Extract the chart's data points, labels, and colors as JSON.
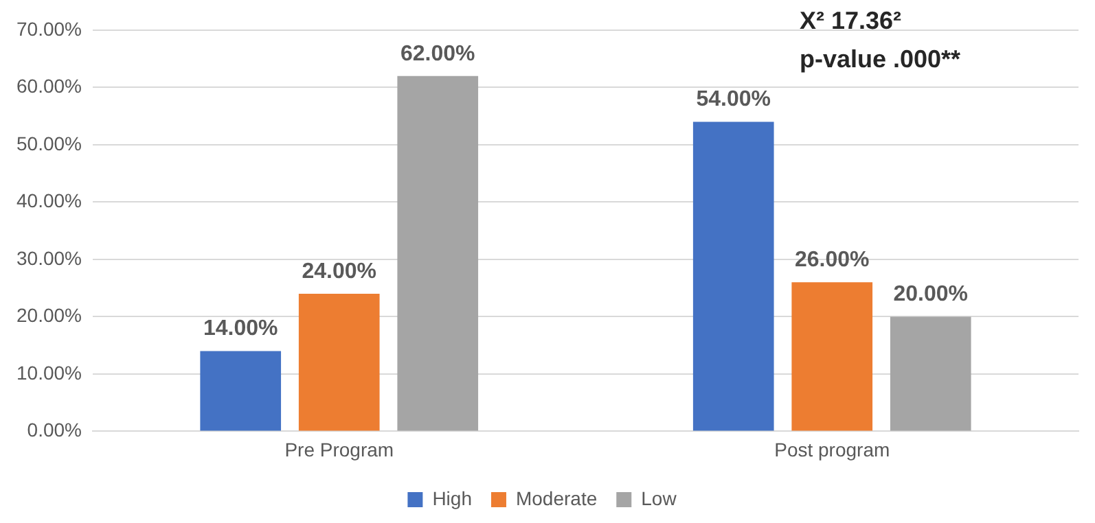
{
  "chart_data": {
    "type": "bar",
    "categories": [
      "Pre Program",
      "Post program"
    ],
    "series": [
      {
        "name": "High",
        "color": "#4472c4",
        "values": [
          14,
          54
        ],
        "value_labels": [
          "14.00%",
          "54.00%"
        ]
      },
      {
        "name": "Moderate",
        "color": "#ed7d31",
        "values": [
          24,
          26
        ],
        "value_labels": [
          "24.00%",
          "26.00%"
        ]
      },
      {
        "name": "Low",
        "color": "#a5a5a5",
        "values": [
          62,
          20
        ],
        "value_labels": [
          "62.00%",
          "20.00%"
        ]
      }
    ],
    "ylim": [
      0,
      70
    ],
    "yticks": [
      {
        "value": 0,
        "label": "0.00%"
      },
      {
        "value": 10,
        "label": "10.00%"
      },
      {
        "value": 20,
        "label": "20.00%"
      },
      {
        "value": 30,
        "label": "30.00%"
      },
      {
        "value": 40,
        "label": "40.00%"
      },
      {
        "value": 50,
        "label": "50.00%"
      },
      {
        "value": 60,
        "label": "60.00%"
      },
      {
        "value": 70,
        "label": "70.00%"
      }
    ],
    "grid": "y",
    "legend": "bottom",
    "annotations": [
      "X² 17.36²",
      "p-value .000**"
    ]
  }
}
